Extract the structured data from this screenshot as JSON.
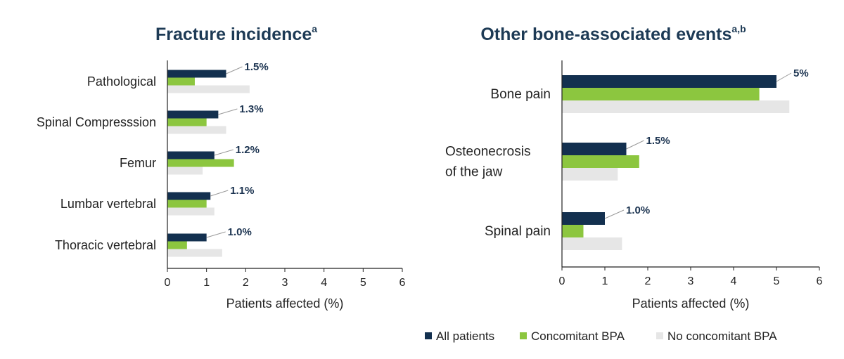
{
  "colors": {
    "all_patients": "#13304f",
    "concomitant_bpa": "#8cc63f",
    "no_concomitant_bpa": "#e6e6e6",
    "title": "#1d3a55",
    "data_label": "#1b3350",
    "axis": "#222222"
  },
  "legend": {
    "items": [
      {
        "label": "All patients",
        "color": "#13304f"
      },
      {
        "label": "Concomitant BPA",
        "color": "#8cc63f"
      },
      {
        "label": "No concomitant BPA",
        "color": "#e6e6e6"
      }
    ]
  },
  "chart_data": [
    {
      "type": "bar",
      "orientation": "horizontal",
      "title": "Fracture incidence",
      "title_superscript": "a",
      "categories": [
        "Pathological",
        "Spinal Compresssion",
        "Femur",
        "Lumbar vertebral",
        "Thoracic vertebral"
      ],
      "series": [
        {
          "name": "All patients",
          "values": [
            1.5,
            1.3,
            1.2,
            1.1,
            1.0
          ]
        },
        {
          "name": "Concomitant BPA",
          "values": [
            0.7,
            1.0,
            1.7,
            1.0,
            0.5
          ]
        },
        {
          "name": "No concomitant BPA",
          "values": [
            2.1,
            1.5,
            0.9,
            1.2,
            1.4
          ]
        }
      ],
      "data_labels": [
        "1.5%",
        "1.3%",
        "1.2%",
        "1.1%",
        "1.0%"
      ],
      "xlabel": "Patients affected (%)",
      "ylabel": "",
      "xlim": [
        0,
        6
      ],
      "xticks": [
        "0",
        "1",
        "2",
        "3",
        "4",
        "5",
        "6"
      ],
      "grid": false
    },
    {
      "type": "bar",
      "orientation": "horizontal",
      "title": "Other bone-associated events",
      "title_superscript": "a,b",
      "categories": [
        "Bone pain",
        "Osteonecrosis of the jaw",
        "Spinal pain"
      ],
      "category_lines": [
        [
          "Bone pain"
        ],
        [
          "Osteonecrosis",
          "of the jaw"
        ],
        [
          "Spinal pain"
        ]
      ],
      "series": [
        {
          "name": "All patients",
          "values": [
            5.0,
            1.5,
            1.0
          ]
        },
        {
          "name": "Concomitant BPA",
          "values": [
            4.6,
            1.8,
            0.5
          ]
        },
        {
          "name": "No concomitant BPA",
          "values": [
            5.3,
            1.3,
            1.4
          ]
        }
      ],
      "data_labels": [
        "5%",
        "1.5%",
        "1.0%"
      ],
      "xlabel": "Patients affected (%)",
      "ylabel": "",
      "xlim": [
        0,
        6
      ],
      "xticks": [
        "0",
        "1",
        "2",
        "3",
        "4",
        "5",
        "6"
      ],
      "grid": false,
      "legend_position": "bottom"
    }
  ]
}
